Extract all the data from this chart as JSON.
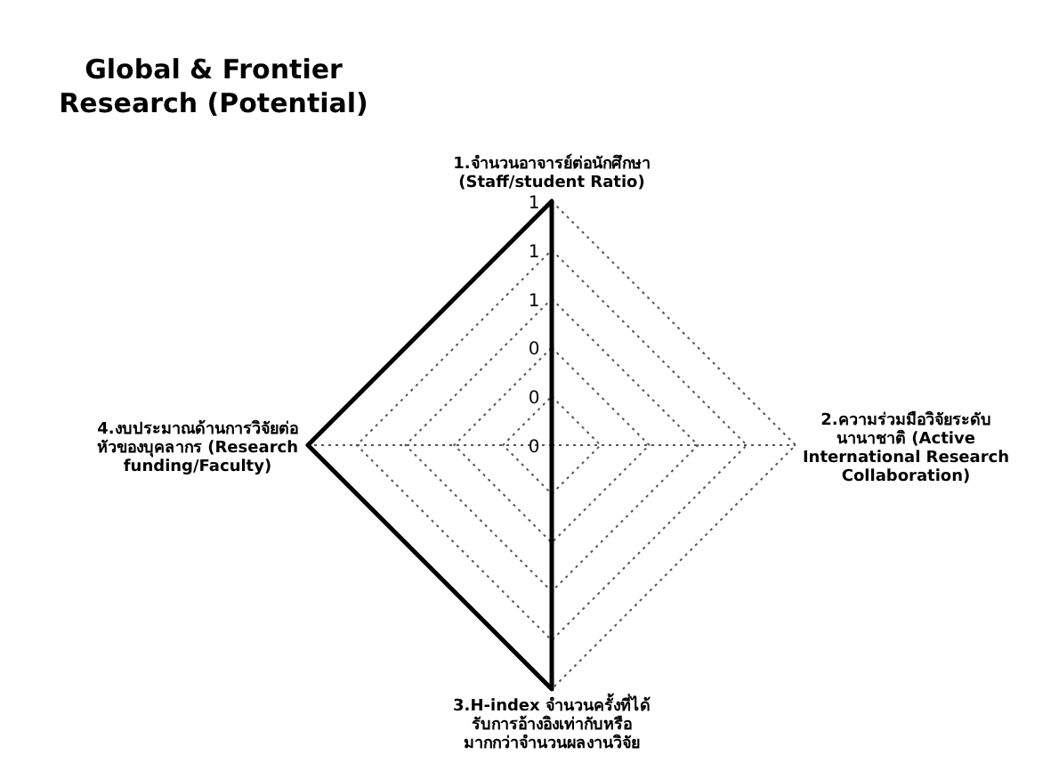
{
  "chart_data": {
    "type": "radar",
    "title": "Global & Frontier Research (Potential)",
    "categories": [
      "1.จำนวนอาจารย์ต่อนักศึกษา (Staff/student Ratio)",
      "2.ความร่วมมือวิจัยระดับนานาชาติ (Active International Research Collaboration)",
      "3.H-index จำนวนครั้งที่ได้รับการอ้างอิงเท่ากับหรือมากกว่าจำนวนผลงานวิจัย",
      "4.งบประมาณด้านการวิจัยต่อหัวของบุคลากร (Research funding/Faculty)"
    ],
    "series": [
      {
        "color": "#000000",
        "values": [
          1,
          0,
          1,
          1
        ]
      }
    ],
    "ylim": [
      0,
      1
    ],
    "yticks": [
      0,
      {
        "value": 0.2,
        "label": "0"
      },
      {
        "value": 0.4,
        "label": "0"
      },
      {
        "value": 0.6,
        "label": "1"
      },
      {
        "value": 0.8,
        "label": "1"
      },
      1
    ],
    "grid": true,
    "marker": "none",
    "line_style": "solid"
  }
}
